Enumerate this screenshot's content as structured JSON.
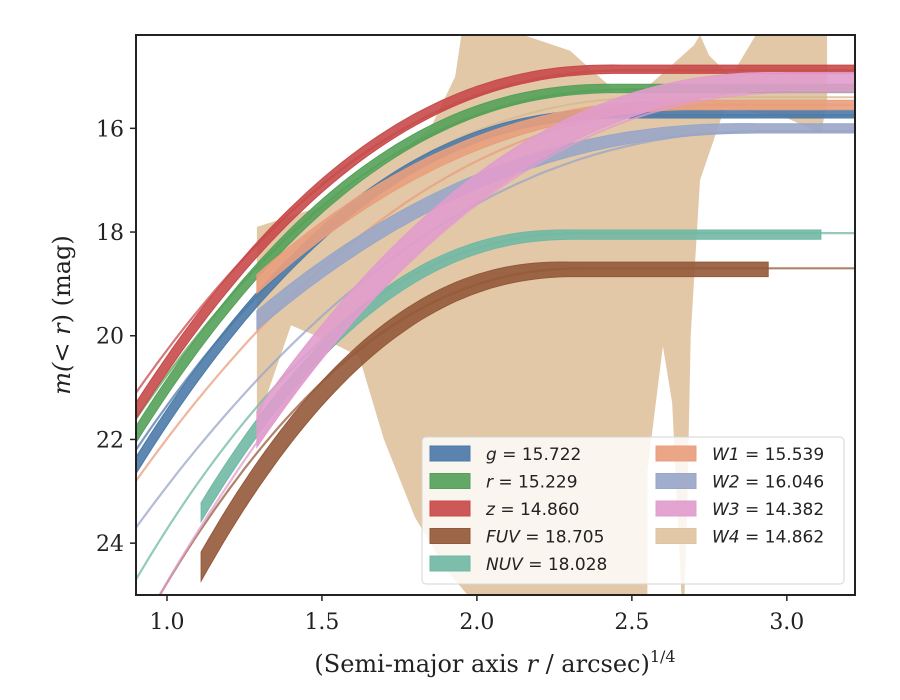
{
  "chart_data": {
    "type": "line",
    "xlabel_main": "(Semi-major axis ",
    "xlabel_var": "r",
    "xlabel_unit": " / arcsec)",
    "xlabel_sup": "1/4",
    "ylabel_main": "m(",
    "ylabel_var": "< r",
    "ylabel_unit": ") (mag)",
    "xlim": [
      0.9,
      3.22
    ],
    "ylim": [
      25.0,
      14.2
    ],
    "y_inverted": true,
    "xticks": [
      "1.0",
      "1.5",
      "2.0",
      "2.5",
      "3.0"
    ],
    "xtick_values": [
      1.0,
      1.5,
      2.0,
      2.5,
      3.0
    ],
    "yticks": [
      "16",
      "18",
      "20",
      "22",
      "24"
    ],
    "ytick_values": [
      16,
      18,
      20,
      22,
      24
    ],
    "grid": false,
    "legend_position": "lower-right",
    "series": [
      {
        "name": "g",
        "total": "15.722",
        "color": "#4c7aa8",
        "band": {
          "x0": 0.9,
          "x1": 3.22,
          "y0": 22.5,
          "yinf": 15.72,
          "xs": 2.45,
          "w": 0.16
        },
        "model": {
          "x0": 0.9,
          "x1": 3.22,
          "y0": 22.2,
          "yinf": 15.75,
          "xs": 2.5,
          "w": 0.03
        }
      },
      {
        "name": "r",
        "total": "15.229",
        "color": "#55a15a",
        "band": {
          "x0": 0.9,
          "x1": 3.22,
          "y0": 21.9,
          "yinf": 15.23,
          "xs": 2.45,
          "w": 0.16
        },
        "model": {
          "x0": 0.9,
          "x1": 3.22,
          "y0": 21.6,
          "yinf": 15.25,
          "xs": 2.5,
          "w": 0.03
        }
      },
      {
        "name": "z",
        "total": "14.860",
        "color": "#c84a4a",
        "band": {
          "x0": 0.9,
          "x1": 3.22,
          "y0": 21.45,
          "yinf": 14.86,
          "xs": 2.45,
          "w": 0.16
        },
        "model": {
          "x0": 0.9,
          "x1": 3.22,
          "y0": 21.1,
          "yinf": 14.88,
          "xs": 2.5,
          "w": 0.03
        }
      },
      {
        "name": "FUV",
        "total": "18.705",
        "color": "#94593a",
        "band": {
          "x0": 1.11,
          "x1": 2.94,
          "y0": 24.45,
          "yinf": 18.72,
          "xs": 2.3,
          "w": 0.28
        },
        "model": {
          "x0": 0.9,
          "x1": 3.22,
          "y0": 25.8,
          "yinf": 18.7,
          "xs": 2.35,
          "w": 0.03
        }
      },
      {
        "name": "NUV",
        "total": "18.028",
        "color": "#71b8a4",
        "band": {
          "x0": 1.11,
          "x1": 3.11,
          "y0": 23.4,
          "yinf": 18.05,
          "xs": 2.3,
          "w": 0.18
        },
        "model": {
          "x0": 0.9,
          "x1": 3.22,
          "y0": 24.7,
          "yinf": 18.02,
          "xs": 2.35,
          "w": 0.03
        }
      },
      {
        "name": "W1",
        "total": "15.539",
        "color": "#e99e7d",
        "band": {
          "x0": 1.29,
          "x1": 3.22,
          "y0": 19.0,
          "yinf": 15.55,
          "xs": 2.7,
          "w": 0.18
        },
        "model": {
          "x0": 0.9,
          "x1": 3.22,
          "y0": 22.8,
          "yinf": 15.55,
          "xs": 2.8,
          "w": 0.03
        }
      },
      {
        "name": "W2",
        "total": "16.046",
        "color": "#99a6c8",
        "band": {
          "x0": 1.29,
          "x1": 3.22,
          "y0": 19.7,
          "yinf": 16.0,
          "xs": 2.9,
          "w": 0.18
        },
        "model": {
          "x0": 0.9,
          "x1": 3.22,
          "y0": 23.7,
          "yinf": 16.05,
          "xs": 2.95,
          "w": 0.03
        }
      },
      {
        "name": "W3",
        "total": "14.382",
        "color": "#e19ccd",
        "band": {
          "x0": 1.29,
          "x1": 3.22,
          "y0": 21.8,
          "yinf": 15.1,
          "xs": 3.0,
          "w": 0.35
        },
        "model": {
          "x0": 0.9,
          "x1": 3.22,
          "y0": 25.8,
          "yinf": 15.3,
          "xs": 3.05,
          "w": 0.03
        }
      },
      {
        "name": "W4",
        "total": "14.862",
        "color": "#dfc3a0"
      }
    ],
    "w4_band_outline": [
      [
        1.29,
        17.9
      ],
      [
        1.5,
        17.5
      ],
      [
        1.7,
        16.7
      ],
      [
        1.85,
        16.0
      ],
      [
        1.93,
        15.0
      ],
      [
        1.95,
        14.2
      ],
      [
        2.15,
        14.2
      ],
      [
        2.3,
        14.5
      ],
      [
        2.45,
        15.3
      ],
      [
        2.55,
        15.2
      ],
      [
        2.7,
        14.4
      ],
      [
        2.72,
        14.2
      ],
      [
        2.75,
        14.6
      ],
      [
        2.82,
        15.0
      ],
      [
        2.9,
        14.2
      ],
      [
        3.13,
        14.2
      ],
      [
        3.13,
        15.5
      ],
      [
        3.11,
        16.1
      ],
      [
        3.0,
        15.8
      ],
      [
        2.9,
        15.7
      ],
      [
        2.8,
        15.6
      ],
      [
        2.72,
        17.0
      ],
      [
        2.69,
        20.0
      ],
      [
        2.68,
        23.0
      ],
      [
        2.67,
        25.0
      ],
      [
        2.66,
        25.0
      ],
      [
        2.63,
        21.3
      ],
      [
        2.6,
        20.2
      ],
      [
        2.55,
        22.6
      ],
      [
        2.55,
        25.0
      ],
      [
        1.97,
        25.0
      ],
      [
        1.9,
        24.5
      ],
      [
        1.8,
        23.5
      ],
      [
        1.7,
        22.0
      ],
      [
        1.62,
        20.4
      ],
      [
        1.52,
        20.1
      ],
      [
        1.4,
        19.8
      ],
      [
        1.29,
        21.7
      ]
    ],
    "w4_model": {
      "x0": 1.29,
      "x1": 3.22,
      "y0": 19.0,
      "yinf": 15.4,
      "xs": 2.6,
      "w": 0.03
    }
  }
}
